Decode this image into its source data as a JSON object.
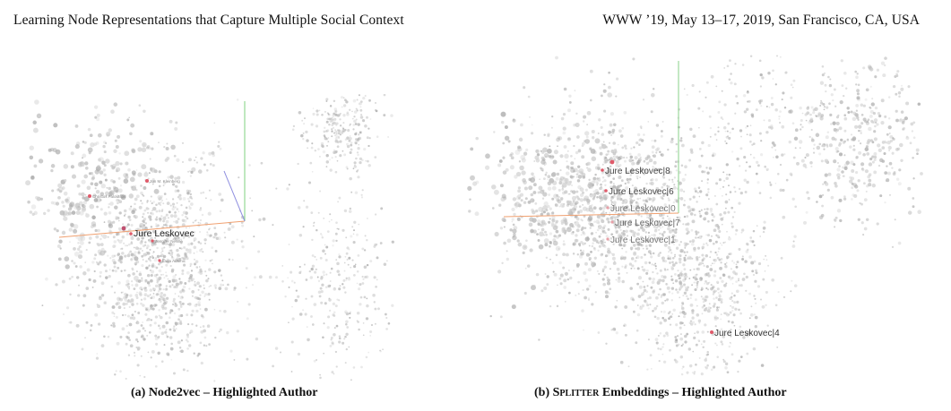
{
  "header": {
    "left": "Learning Node Representations that Capture Multiple Social Context",
    "right": "WWW ’19, May 13–17, 2019, San Francisco, CA, USA"
  },
  "panel_a": {
    "caption_prefix": "(a) Node2vec – Highlighted Author",
    "highlight_label": "Jure Leskovec",
    "small_labels": [
      "Christos Faloutsos",
      "Jon M. Kleinberg",
      "Jennifer Neville",
      "Lada Adamic"
    ],
    "highlight_color": "#e05a6a"
  },
  "panel_b": {
    "caption_prefix": "(b) ",
    "caption_smallcaps": "Splitter",
    "caption_suffix": " Embeddings – Highlighted Author",
    "labels": [
      "Jure Leskovec|8",
      "Jure Leskovec|6",
      "Jure Leskovec|0",
      "Jure Leskovec|7",
      "Jure Leskovec|1",
      "Jure Leskovec|4"
    ],
    "highlight_color": "#e05a6a"
  }
}
